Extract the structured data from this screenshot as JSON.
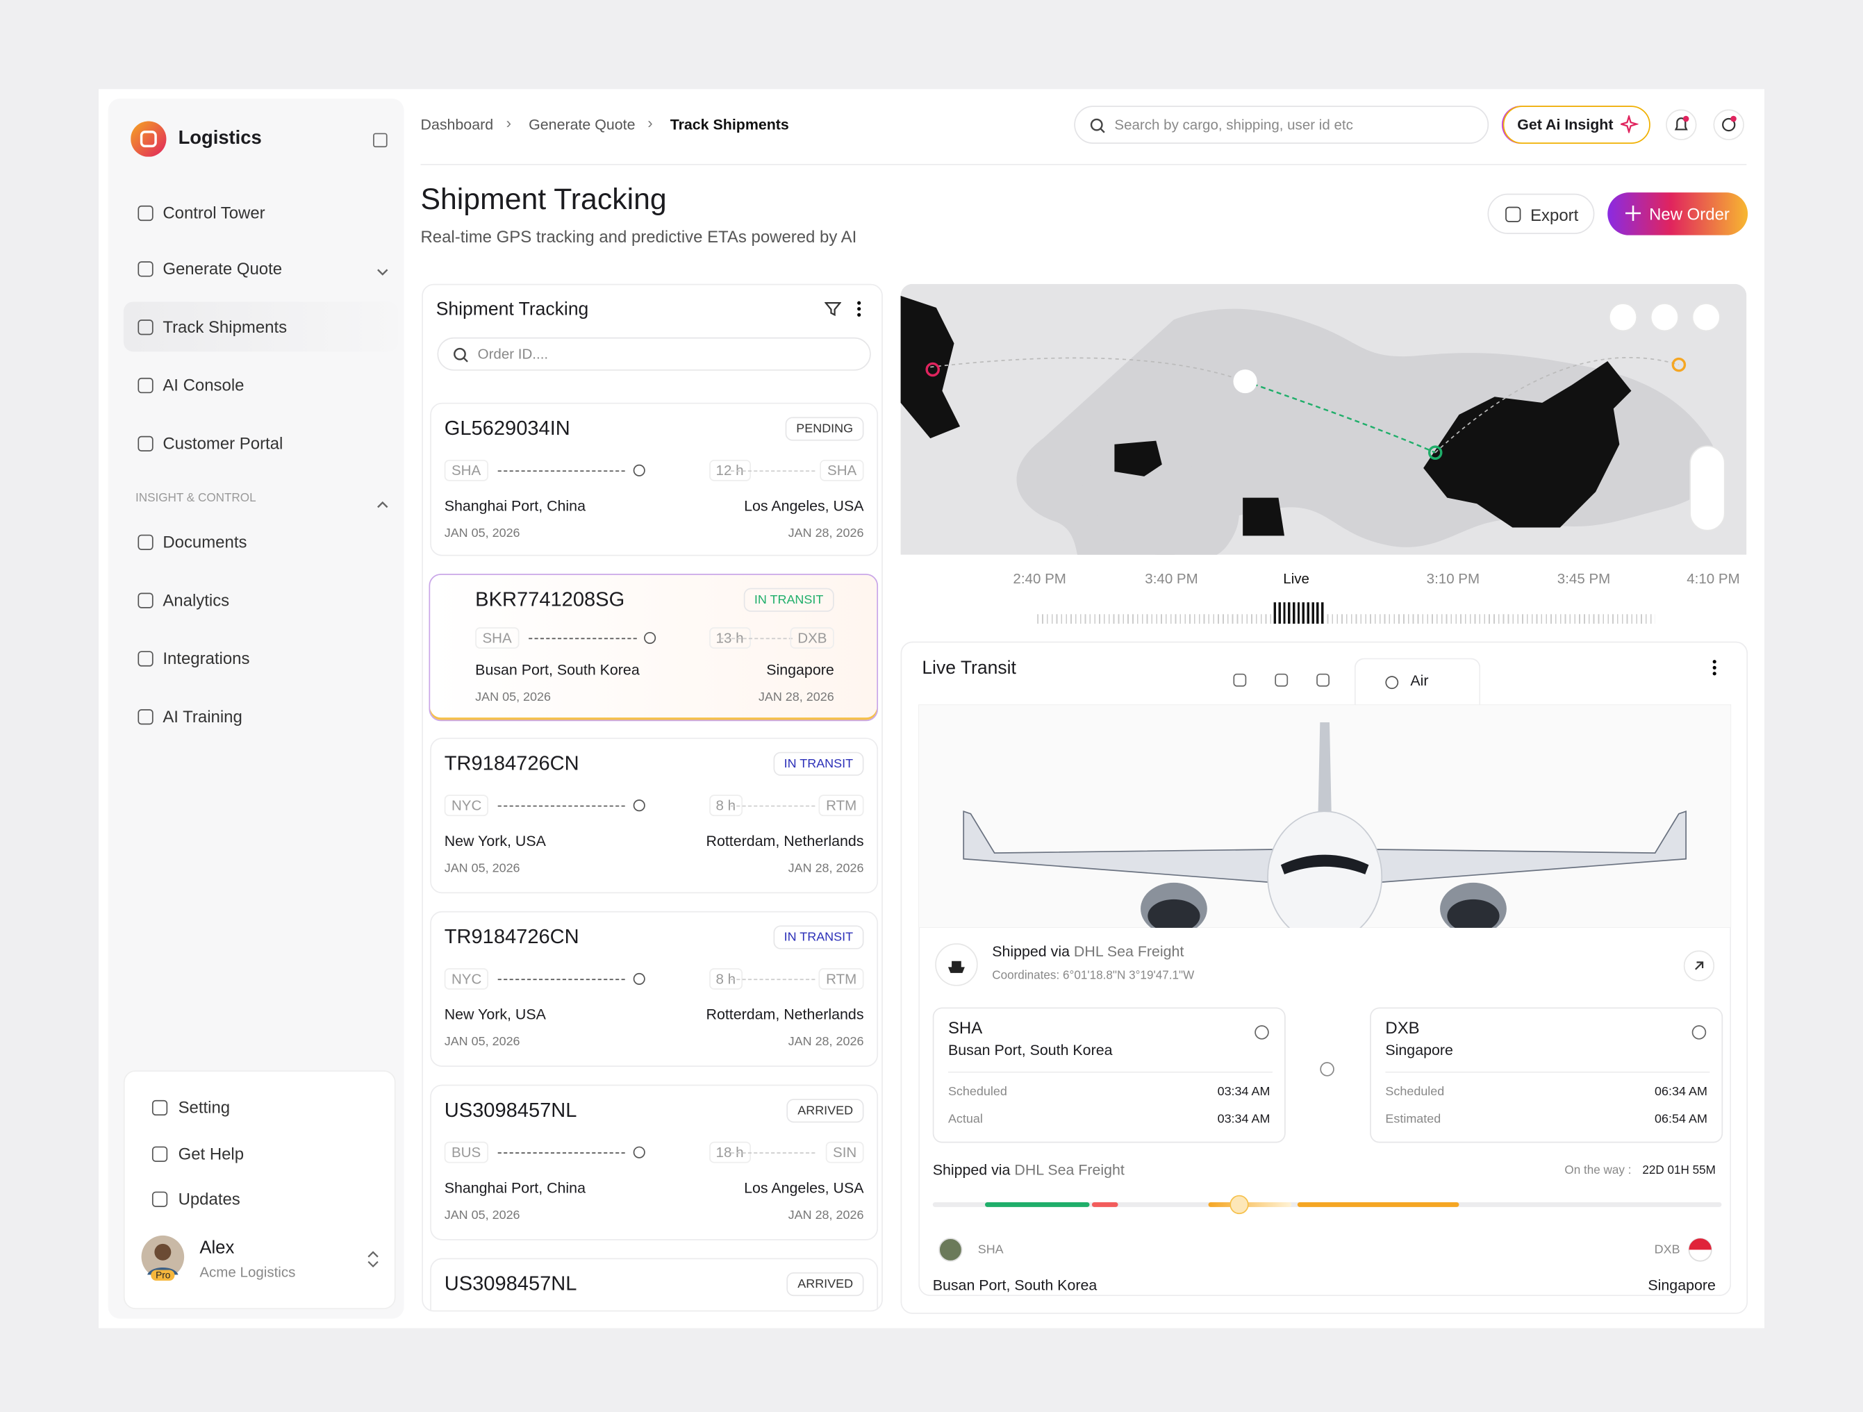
{
  "sidebar": {
    "brand": "Logistics",
    "nav": [
      "Control Tower",
      "Generate Quote",
      "Track Shipments",
      "AI Console",
      "Customer Portal"
    ],
    "section": "INSIGHT & CONTROL",
    "nav2": [
      "Documents",
      "Analytics",
      "Integrations",
      "AI Training"
    ],
    "footer": [
      "Setting",
      "Get Help",
      "Updates"
    ],
    "user": {
      "name": "Alex",
      "org": "Acme Logistics",
      "badge": "Pro"
    }
  },
  "header": {
    "breadcrumb": [
      "Dashboard",
      "Generate Quote",
      "Track Shipments"
    ],
    "search": "Search by cargo, shipping, user id etc",
    "ai_button": "Get Ai Insight"
  },
  "page": {
    "title": "Shipment Tracking",
    "subtitle": "Real-time GPS tracking and predictive ETAs powered by AI",
    "export": "Export",
    "new_order": "New Order"
  },
  "list": {
    "title": "Shipment Tracking",
    "search": "Order ID....",
    "shipments": [
      {
        "id": "GL5629034IN",
        "status": "PENDING",
        "status_color": "#333333",
        "from_code": "SHA",
        "duration": "12 h",
        "to_code": "SHA",
        "origin": "Shanghai Port, China",
        "destination": "Los Angeles, USA",
        "depart": "JAN 05, 2026",
        "arrive": "JAN 28, 2026"
      },
      {
        "id": "BKR7741208SG",
        "status": "IN TRANSIT",
        "status_color": "#1fae6a",
        "from_code": "SHA",
        "duration": "13 h",
        "to_code": "DXB",
        "origin": "Busan Port, South Korea",
        "destination": "Singapore",
        "depart": "JAN 05, 2026",
        "arrive": "JAN 28, 2026"
      },
      {
        "id": "TR9184726CN",
        "status": "IN TRANSIT",
        "status_color": "#2b2fb8",
        "from_code": "NYC",
        "duration": "8 h",
        "to_code": "RTM",
        "origin": "New York, USA",
        "destination": "Rotterdam, Netherlands",
        "depart": "JAN 05, 2026",
        "arrive": "JAN 28, 2026"
      },
      {
        "id": "TR9184726CN",
        "status": "IN TRANSIT",
        "status_color": "#2b2fb8",
        "from_code": "NYC",
        "duration": "8 h",
        "to_code": "RTM",
        "origin": "New York, USA",
        "destination": "Rotterdam, Netherlands",
        "depart": "JAN 05, 2026",
        "arrive": "JAN 28, 2026"
      },
      {
        "id": "US3098457NL",
        "status": "ARRIVED",
        "status_color": "#333333",
        "from_code": "BUS",
        "duration": "18 h",
        "to_code": "SIN",
        "origin": "Shanghai Port, China",
        "destination": "Los Angeles, USA",
        "depart": "JAN 05, 2026",
        "arrive": "JAN 28, 2026"
      },
      {
        "id": "US3098457NL",
        "status": "ARRIVED",
        "status_color": "#333333"
      }
    ]
  },
  "map": {
    "times": [
      "2:40 PM",
      "3:40 PM",
      "Live",
      "3:10 PM",
      "3:45 PM",
      "4:10 PM"
    ]
  },
  "transit": {
    "title": "Live Transit",
    "tab": "Air",
    "shipped_label": "Shipped via",
    "carrier": "DHL Sea Freight",
    "coordinates": "Coordinates: 6°01'18.8\"N 3°19'47.1\"W",
    "origin": {
      "code": "SHA",
      "name": "Busan Port, South Korea",
      "rows": [
        [
          "Scheduled",
          "03:34 AM"
        ],
        [
          "Actual",
          "03:34 AM"
        ]
      ]
    },
    "destination": {
      "code": "DXB",
      "name": "Singapore",
      "rows": [
        [
          "Scheduled",
          "06:34 AM"
        ],
        [
          "Estimated",
          "06:54 AM"
        ]
      ]
    },
    "progress": {
      "shipped_label": "Shipped via",
      "carrier": "DHL Sea Freight",
      "on_the_way": "On the way :",
      "eta": "22D 01H 55M"
    },
    "from": {
      "code": "SHA",
      "name": "Busan Port, South Korea"
    },
    "to": {
      "code": "DXB",
      "name": "Singapore"
    }
  }
}
